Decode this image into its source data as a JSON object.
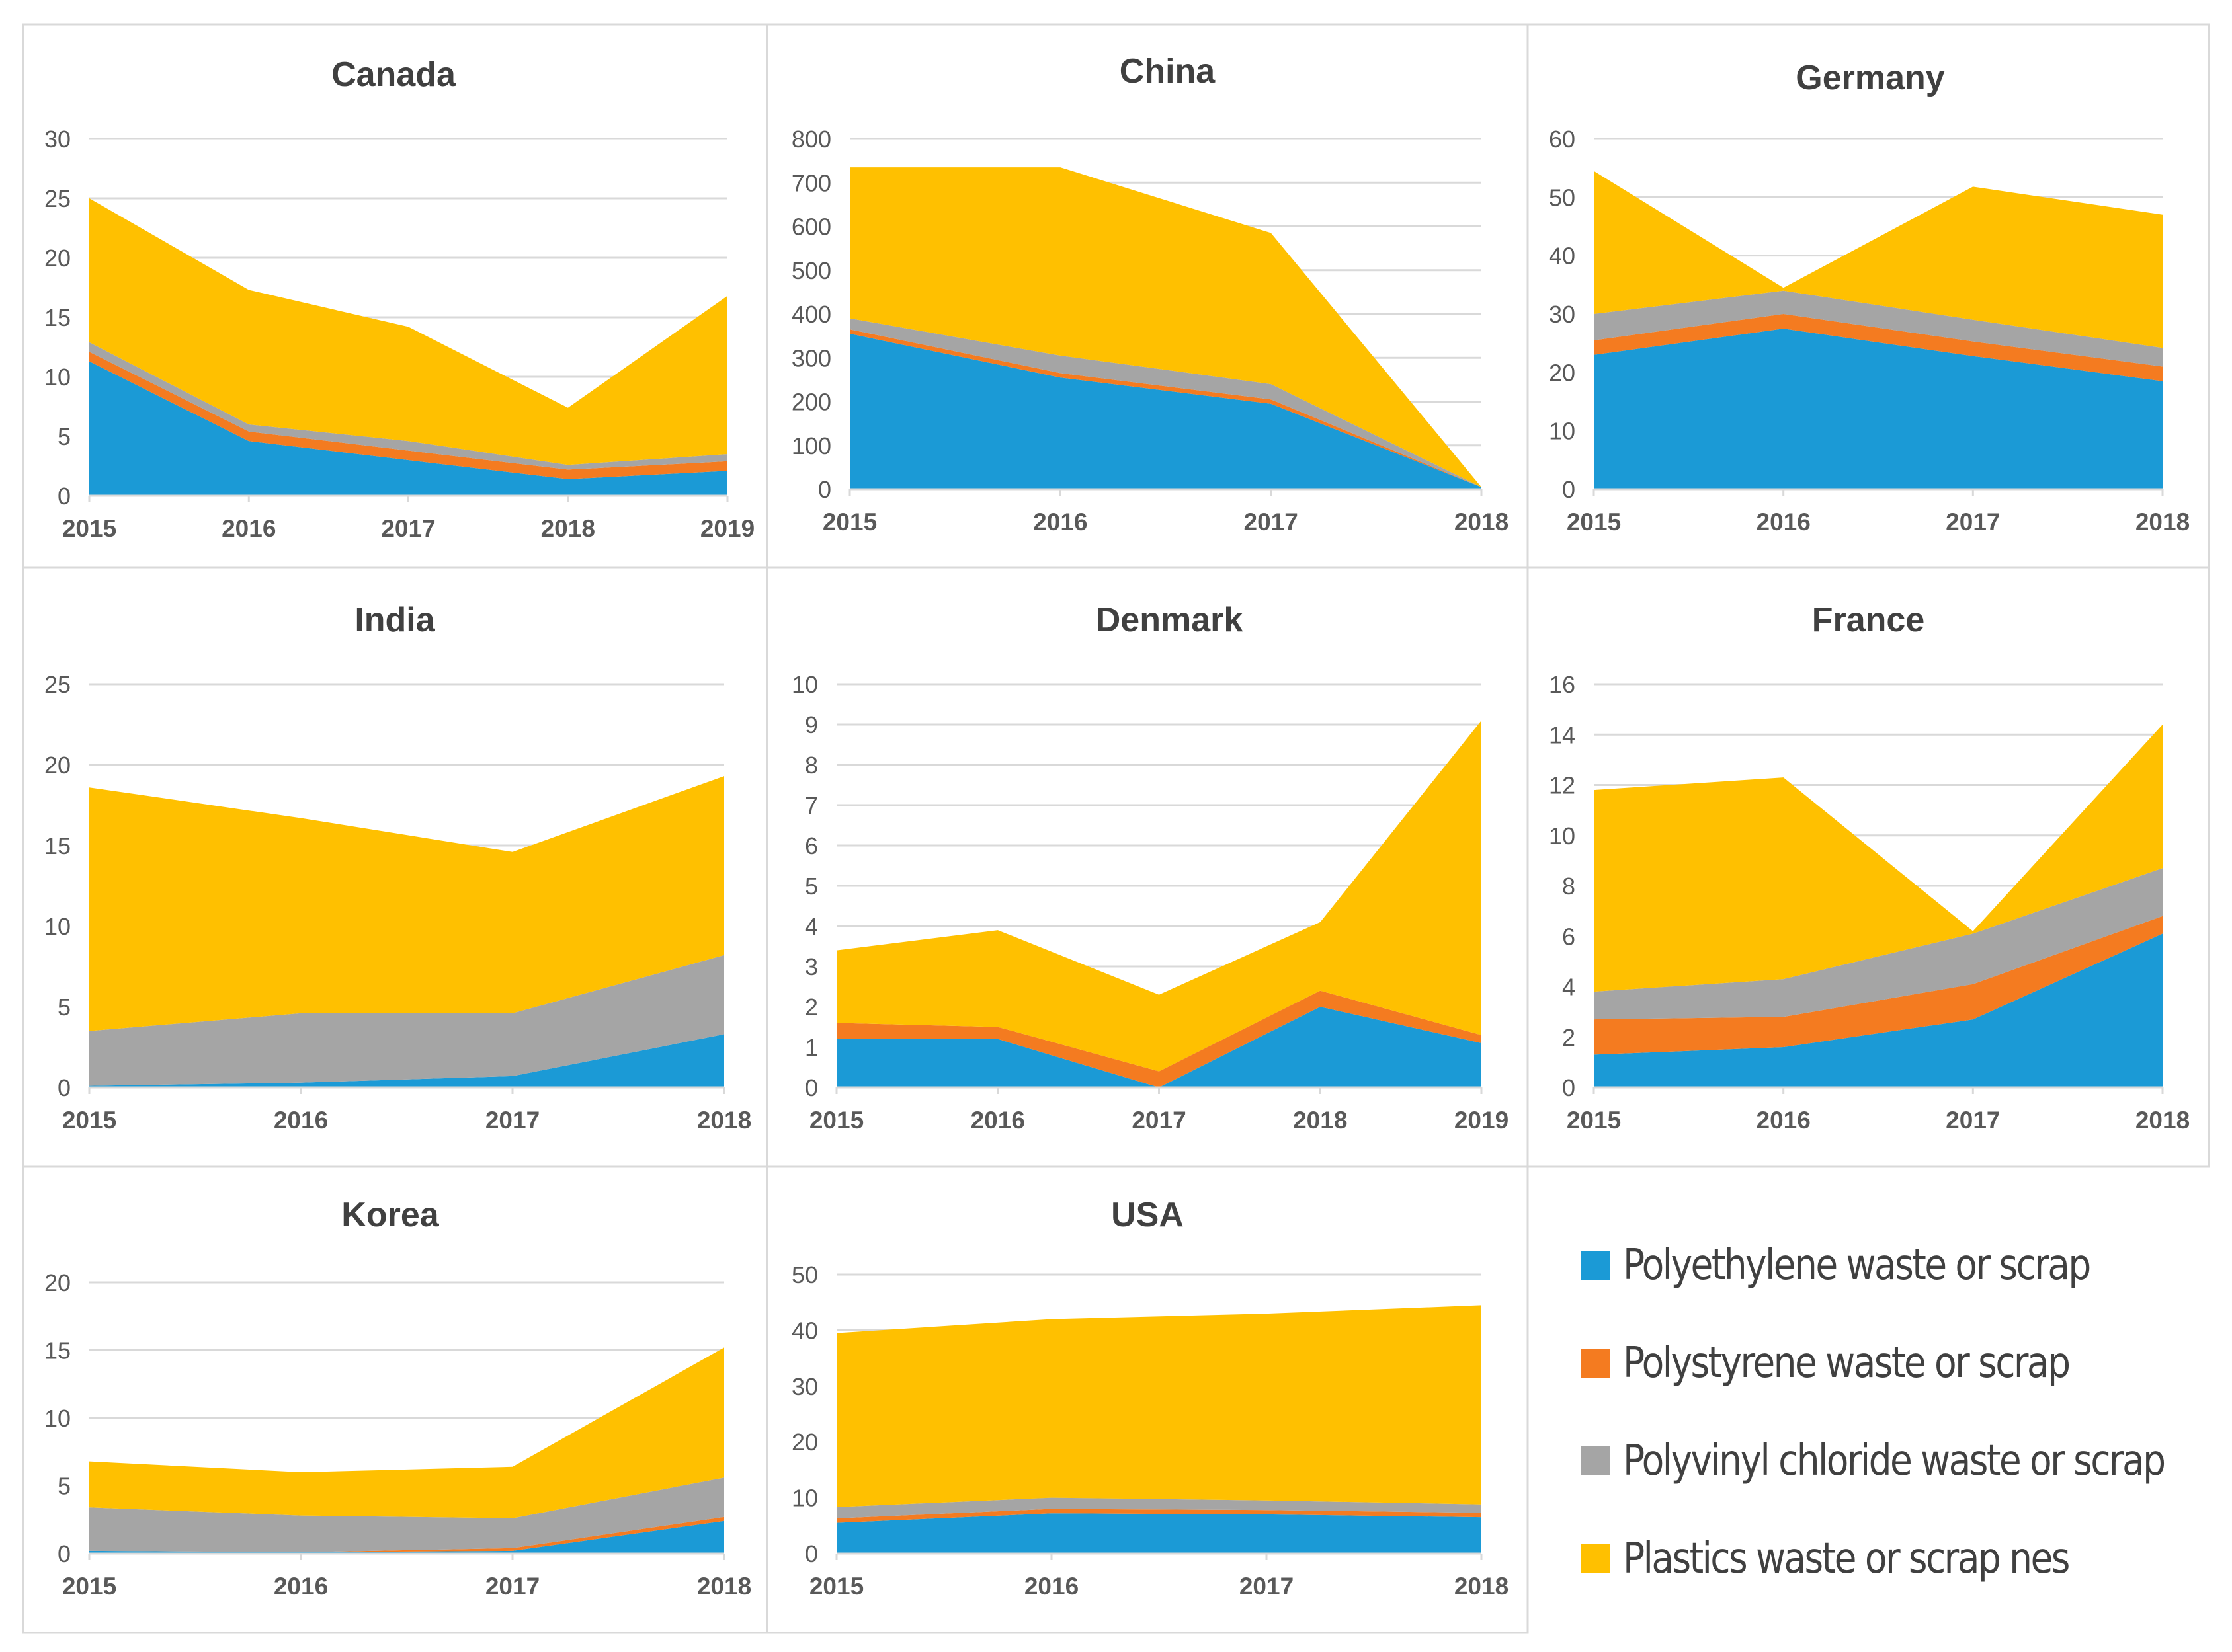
{
  "colors": {
    "polyethylene": "#1b9ad6",
    "polystyrene": "#f47b20",
    "pvc": "#a5a5a5",
    "nes": "#ffc000",
    "grid": "#d9d9d9",
    "border": "#d9d9d9",
    "text": "#595959",
    "title": "#404040"
  },
  "legend": [
    {
      "key": "polyethylene",
      "label": "Polyethylene waste or scrap"
    },
    {
      "key": "polystyrene",
      "label": "Polystyrene waste or scrap"
    },
    {
      "key": "pvc",
      "label": "Polyvinyl chloride waste or scrap"
    },
    {
      "key": "nes",
      "label": "Plastics waste or scrap nes"
    }
  ],
  "chart_data": [
    {
      "type": "area",
      "stacked": true,
      "title": "Canada",
      "categories": [
        "2015",
        "2016",
        "2017",
        "2018",
        "2019"
      ],
      "ylim": [
        0,
        30
      ],
      "yticks": [
        0,
        5,
        10,
        15,
        20,
        25,
        30
      ],
      "series": [
        {
          "name": "Polyethylene waste or scrap",
          "key": "polyethylene",
          "values": [
            11.3,
            4.6,
            3.0,
            1.4,
            2.1
          ]
        },
        {
          "name": "Polystyrene waste or scrap",
          "key": "polystyrene",
          "values": [
            0.8,
            0.8,
            0.8,
            0.8,
            0.8
          ]
        },
        {
          "name": "Polyvinyl chloride waste or scrap",
          "key": "pvc",
          "values": [
            0.8,
            0.6,
            0.8,
            0.4,
            0.6
          ]
        },
        {
          "name": "Plastics waste or scrap nes",
          "key": "nes",
          "values": [
            12.1,
            11.3,
            9.6,
            4.8,
            13.3
          ]
        }
      ]
    },
    {
      "type": "area",
      "stacked": true,
      "title": "China",
      "categories": [
        "2015",
        "2016",
        "2017",
        "2018"
      ],
      "ylim": [
        0,
        800
      ],
      "yticks": [
        0,
        100,
        200,
        300,
        400,
        500,
        600,
        700,
        800
      ],
      "series": [
        {
          "name": "Polyethylene waste or scrap",
          "key": "polyethylene",
          "values": [
            355,
            255,
            195,
            5
          ]
        },
        {
          "name": "Polystyrene waste or scrap",
          "key": "polystyrene",
          "values": [
            10,
            10,
            10,
            0
          ]
        },
        {
          "name": "Polyvinyl chloride waste or scrap",
          "key": "pvc",
          "values": [
            25,
            40,
            35,
            0
          ]
        },
        {
          "name": "Plastics waste or scrap nes",
          "key": "nes",
          "values": [
            345,
            430,
            345,
            0
          ]
        }
      ]
    },
    {
      "type": "area",
      "stacked": true,
      "title": "Germany",
      "categories": [
        "2015",
        "2016",
        "2017",
        "2018"
      ],
      "ylim": [
        0,
        60
      ],
      "yticks": [
        0,
        10,
        20,
        30,
        40,
        50,
        60
      ],
      "series": [
        {
          "name": "Polyethylene waste or scrap",
          "key": "polyethylene",
          "values": [
            23.0,
            27.5,
            22.8,
            18.5
          ]
        },
        {
          "name": "Polystyrene waste or scrap",
          "key": "polystyrene",
          "values": [
            2.5,
            2.5,
            2.5,
            2.5
          ]
        },
        {
          "name": "Polyvinyl chloride waste or scrap",
          "key": "pvc",
          "values": [
            4.5,
            4.0,
            3.7,
            3.2
          ]
        },
        {
          "name": "Plastics waste or scrap nes",
          "key": "nes",
          "values": [
            24.5,
            0.5,
            22.8,
            22.8
          ]
        }
      ]
    },
    {
      "type": "area",
      "stacked": true,
      "title": "India",
      "categories": [
        "2015",
        "2016",
        "2017",
        "2018"
      ],
      "ylim": [
        0,
        25
      ],
      "yticks": [
        0,
        5,
        10,
        15,
        20,
        25
      ],
      "series": [
        {
          "name": "Polyethylene waste or scrap",
          "key": "polyethylene",
          "values": [
            0.1,
            0.3,
            0.7,
            3.3
          ]
        },
        {
          "name": "Polystyrene waste or scrap",
          "key": "polystyrene",
          "values": [
            0.0,
            0.0,
            0.0,
            0.0
          ]
        },
        {
          "name": "Polyvinyl chloride waste or scrap",
          "key": "pvc",
          "values": [
            3.4,
            4.3,
            3.9,
            4.9
          ]
        },
        {
          "name": "Plastics waste or scrap nes",
          "key": "nes",
          "values": [
            15.1,
            12.1,
            10.0,
            11.1
          ]
        }
      ]
    },
    {
      "type": "area",
      "stacked": true,
      "title": "Denmark",
      "categories": [
        "2015",
        "2016",
        "2017",
        "2018",
        "2019"
      ],
      "ylim": [
        0,
        10
      ],
      "yticks": [
        0,
        1,
        2,
        3,
        4,
        5,
        6,
        7,
        8,
        9,
        10
      ],
      "series": [
        {
          "name": "Polyethylene waste or scrap",
          "key": "polyethylene",
          "values": [
            1.2,
            1.2,
            0.0,
            2.0,
            1.1
          ]
        },
        {
          "name": "Polystyrene waste or scrap",
          "key": "polystyrene",
          "values": [
            0.4,
            0.3,
            0.4,
            0.4,
            0.2
          ]
        },
        {
          "name": "Polyvinyl chloride waste or scrap",
          "key": "pvc",
          "values": [
            0.0,
            0.0,
            0.0,
            0.0,
            0.0
          ]
        },
        {
          "name": "Plastics waste or scrap nes",
          "key": "nes",
          "values": [
            1.8,
            2.4,
            1.9,
            1.7,
            7.8
          ]
        }
      ]
    },
    {
      "type": "area",
      "stacked": true,
      "title": "France",
      "categories": [
        "2015",
        "2016",
        "2017",
        "2018"
      ],
      "ylim": [
        0,
        16
      ],
      "yticks": [
        0,
        2,
        4,
        6,
        8,
        10,
        12,
        14,
        16
      ],
      "series": [
        {
          "name": "Polyethylene waste or scrap",
          "key": "polyethylene",
          "values": [
            1.3,
            1.6,
            2.7,
            6.1
          ]
        },
        {
          "name": "Polystyrene waste or scrap",
          "key": "polystyrene",
          "values": [
            1.4,
            1.2,
            1.4,
            0.7
          ]
        },
        {
          "name": "Polyvinyl chloride waste or scrap",
          "key": "pvc",
          "values": [
            1.1,
            1.5,
            2.0,
            1.9
          ]
        },
        {
          "name": "Plastics waste or scrap nes",
          "key": "nes",
          "values": [
            8.0,
            8.0,
            0.1,
            5.7
          ]
        }
      ]
    },
    {
      "type": "area",
      "stacked": true,
      "title": "Korea",
      "categories": [
        "2015",
        "2016",
        "2017",
        "2018"
      ],
      "ylim": [
        0,
        20
      ],
      "yticks": [
        0,
        5,
        10,
        15,
        20
      ],
      "series": [
        {
          "name": "Polyethylene waste or scrap",
          "key": "polyethylene",
          "values": [
            0.2,
            0.1,
            0.2,
            2.4
          ]
        },
        {
          "name": "Polystyrene waste or scrap",
          "key": "polystyrene",
          "values": [
            0.0,
            0.0,
            0.2,
            0.3
          ]
        },
        {
          "name": "Polyvinyl chloride waste or scrap",
          "key": "pvc",
          "values": [
            3.2,
            2.7,
            2.2,
            2.9
          ]
        },
        {
          "name": "Plastics waste or scrap nes",
          "key": "nes",
          "values": [
            3.4,
            3.2,
            3.8,
            9.6
          ]
        }
      ]
    },
    {
      "type": "area",
      "stacked": true,
      "title": "USA",
      "categories": [
        "2015",
        "2016",
        "2017",
        "2018"
      ],
      "ylim": [
        0,
        50
      ],
      "yticks": [
        0,
        10,
        20,
        30,
        40,
        50
      ],
      "series": [
        {
          "name": "Polyethylene waste or scrap",
          "key": "polyethylene",
          "values": [
            5.5,
            7.2,
            7.0,
            6.5
          ]
        },
        {
          "name": "Polystyrene waste or scrap",
          "key": "polystyrene",
          "values": [
            0.8,
            0.8,
            0.8,
            0.8
          ]
        },
        {
          "name": "Polyvinyl chloride waste or scrap",
          "key": "pvc",
          "values": [
            2.0,
            2.0,
            1.7,
            1.5
          ]
        },
        {
          "name": "Plastics waste or scrap nes",
          "key": "nes",
          "values": [
            31.2,
            32.0,
            33.5,
            35.7
          ]
        }
      ]
    }
  ]
}
